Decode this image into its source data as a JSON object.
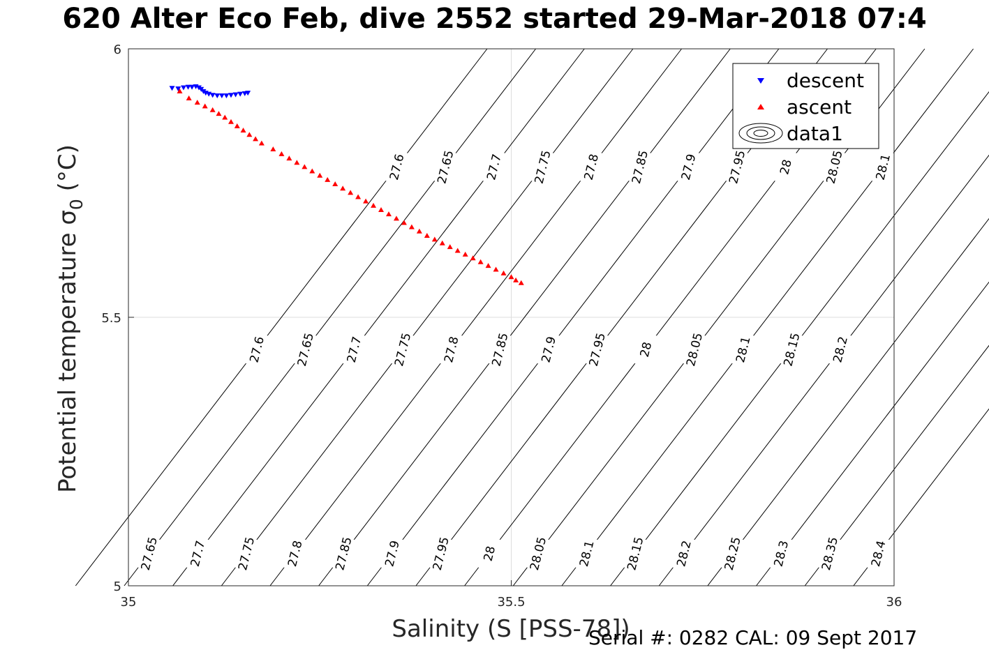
{
  "title": "620 Alter Eco Feb, dive 2552 started 29-Mar-2018 07:4",
  "footer": "Serial #: 0282  CAL: 09 Sept 2017",
  "chart_data": {
    "type": "scatter",
    "xlabel": "Salinity (S [PSS-78])",
    "ylabel": "Potential temperature σ",
    "ylabel_sub": "0",
    "ylabel_unit": " (°C)",
    "xlim": [
      35,
      36
    ],
    "ylim": [
      5,
      6
    ],
    "x_ticks": [
      "35",
      "35.5",
      "36"
    ],
    "y_ticks": [
      "5",
      "5.5",
      "6"
    ],
    "grid": true,
    "legend_position": "top-right",
    "series": [
      {
        "name": "descent",
        "marker": "triangle-down",
        "color": "#0000ff",
        "x": [
          35.057,
          35.065,
          35.072,
          35.078,
          35.083,
          35.088,
          35.092,
          35.095,
          35.098,
          35.101,
          35.105,
          35.11,
          35.116,
          35.122,
          35.128,
          35.134,
          35.14,
          35.146,
          35.152,
          35.156
        ],
        "y": [
          5.927,
          5.926,
          5.928,
          5.929,
          5.929,
          5.93,
          5.928,
          5.925,
          5.921,
          5.918,
          5.916,
          5.914,
          5.913,
          5.913,
          5.913,
          5.914,
          5.915,
          5.916,
          5.917,
          5.918
        ]
      },
      {
        "name": "ascent",
        "marker": "triangle-up",
        "color": "#ff0000",
        "x": [
          35.067,
          35.079,
          35.09,
          35.1,
          35.11,
          35.118,
          35.126,
          35.134,
          35.142,
          35.15,
          35.158,
          35.166,
          35.174,
          35.189,
          35.2,
          35.21,
          35.22,
          35.23,
          35.24,
          35.25,
          35.26,
          35.27,
          35.28,
          35.29,
          35.3,
          35.31,
          35.32,
          35.33,
          35.34,
          35.35,
          35.36,
          35.37,
          35.38,
          35.39,
          35.4,
          35.41,
          35.42,
          35.43,
          35.44,
          35.45,
          35.46,
          35.47,
          35.48,
          35.49,
          35.5,
          35.506,
          35.513
        ],
        "y": [
          5.921,
          5.908,
          5.9,
          5.893,
          5.886,
          5.879,
          5.872,
          5.864,
          5.856,
          5.848,
          5.84,
          5.832,
          5.824,
          5.813,
          5.804,
          5.796,
          5.788,
          5.78,
          5.772,
          5.764,
          5.756,
          5.748,
          5.74,
          5.732,
          5.724,
          5.716,
          5.708,
          5.7,
          5.692,
          5.684,
          5.676,
          5.668,
          5.66,
          5.652,
          5.645,
          5.638,
          5.631,
          5.624,
          5.617,
          5.61,
          5.603,
          5.596,
          5.589,
          5.582,
          5.575,
          5.569,
          5.564
        ]
      },
      {
        "name": "data1",
        "type": "contour",
        "color": "#000000",
        "levels": [
          "27.6",
          "27.65",
          "27.7",
          "27.75",
          "27.8",
          "27.85",
          "27.9",
          "27.95",
          "28",
          "28.05",
          "28.1",
          "28.15",
          "28.2",
          "28.25",
          "28.3",
          "28.35",
          "28.4"
        ]
      }
    ]
  }
}
